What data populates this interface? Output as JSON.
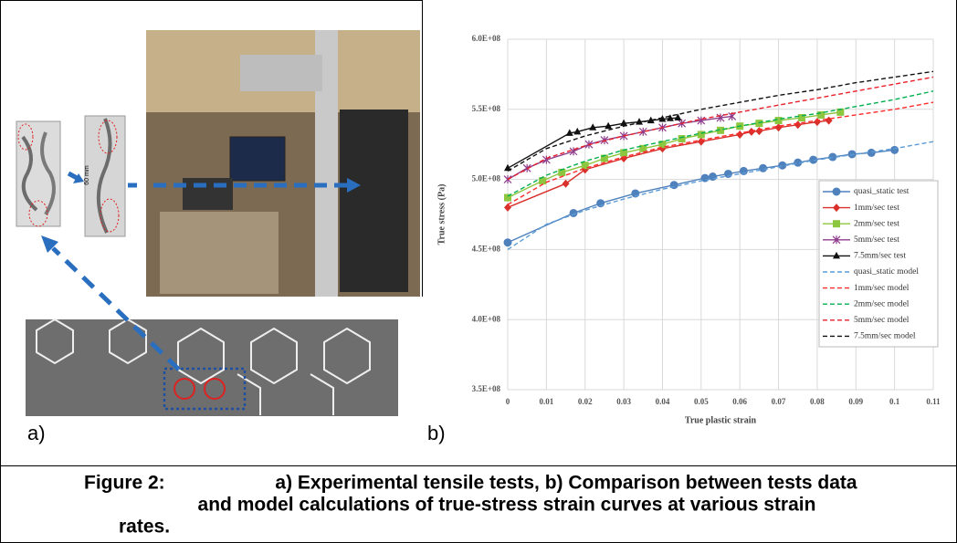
{
  "chart_data": {
    "type": "line",
    "xlabel": "True plastic strain",
    "ylabel": "True stress (Pa)",
    "xlim": [
      0,
      0.11
    ],
    "ylim": [
      350000000.0,
      600000000.0
    ],
    "xticks": [
      0,
      0.01,
      0.02,
      0.03,
      0.04,
      0.05,
      0.06,
      0.07,
      0.08,
      0.09,
      0.1,
      0.11
    ],
    "yticks": [
      {
        "value": 350000000.0,
        "label": "3.5E+08"
      },
      {
        "value": 400000000.0,
        "label": "4.0E+08"
      },
      {
        "value": 450000000.0,
        "label": "4.5E+08"
      },
      {
        "value": 500000000.0,
        "label": "5.0E+08"
      },
      {
        "value": 550000000.0,
        "label": "5.5E+08"
      },
      {
        "value": 600000000.0,
        "label": "6.0E+08"
      }
    ],
    "grid": true,
    "legend": "right",
    "series": [
      {
        "name": "quasi_static test",
        "color": "#4f81bd",
        "style": "solid",
        "marker": "circle",
        "x": [
          0,
          0.017,
          0.024,
          0.033,
          0.043,
          0.051,
          0.053,
          0.057,
          0.061,
          0.066,
          0.071,
          0.075,
          0.079,
          0.084,
          0.089,
          0.094,
          0.1
        ],
        "values": [
          455000000.0,
          476000000.0,
          483000000.0,
          490000000.0,
          496000000.0,
          501000000.0,
          502000000.0,
          504000000.0,
          506000000.0,
          508000000.0,
          510000000.0,
          512000000.0,
          514000000.0,
          516000000.0,
          518000000.0,
          519000000.0,
          521000000.0
        ]
      },
      {
        "name": "1mm/sec test",
        "color": "#d9302b",
        "style": "solid",
        "marker": "diamond",
        "x": [
          0,
          0.015,
          0.02,
          0.03,
          0.04,
          0.05,
          0.06,
          0.063,
          0.065,
          0.07,
          0.075,
          0.08,
          0.083
        ],
        "values": [
          480000000.0,
          497000000.0,
          507000000.0,
          515000000.0,
          522000000.0,
          527000000.0,
          532000000.0,
          534000000.0,
          534500000.0,
          537000000.0,
          539000000.0,
          541000000.0,
          542000000.0
        ]
      },
      {
        "name": "2mm/sec test",
        "color": "#8dc63f",
        "style": "solid",
        "marker": "square",
        "x": [
          0,
          0.009,
          0.014,
          0.02,
          0.025,
          0.03,
          0.035,
          0.04,
          0.045,
          0.05,
          0.055,
          0.06,
          0.065,
          0.07,
          0.076,
          0.081,
          0.086
        ],
        "values": [
          487000000.0,
          499000000.0,
          505000000.0,
          510000000.0,
          515000000.0,
          519000000.0,
          522000000.0,
          525000000.0,
          529000000.0,
          532000000.0,
          535000000.0,
          538000000.0,
          540000000.0,
          542000000.0,
          544000000.0,
          546000000.0,
          548000000.0
        ]
      },
      {
        "name": "5mm/sec test",
        "color": "#8e3c8c",
        "style": "solid",
        "marker": "star",
        "x": [
          0,
          0.005,
          0.01,
          0.017,
          0.021,
          0.025,
          0.03,
          0.035,
          0.04,
          0.045,
          0.05,
          0.055,
          0.058
        ],
        "values": [
          500000000.0,
          508000000.0,
          514000000.0,
          520000000.0,
          525000000.0,
          528000000.0,
          531000000.0,
          534000000.0,
          537000000.0,
          540000000.0,
          542000000.0,
          544000000.0,
          545000000.0
        ]
      },
      {
        "name": "7.5mm/sec test",
        "color": "#111111",
        "style": "solid",
        "marker": "triangle",
        "x": [
          0,
          0.016,
          0.018,
          0.022,
          0.026,
          0.03,
          0.034,
          0.037,
          0.04,
          0.042,
          0.044
        ],
        "values": [
          508000000.0,
          533000000.0,
          534000000.0,
          537000000.0,
          538000000.0,
          540000000.0,
          541000000.0,
          542000000.0,
          543000000.0,
          543500000.0,
          544000000.0
        ]
      },
      {
        "name": "quasi_static model",
        "color": "#5b9bd5",
        "style": "dashed",
        "marker": "none",
        "x": [
          0,
          0.01,
          0.02,
          0.03,
          0.04,
          0.05,
          0.06,
          0.07,
          0.08,
          0.09,
          0.1,
          0.11
        ],
        "values": [
          450000000.0,
          468000000.0,
          478000000.0,
          486000000.0,
          493000000.0,
          499000000.0,
          504000000.0,
          509000000.0,
          514000000.0,
          518000000.0,
          522000000.0,
          527000000.0
        ]
      },
      {
        "name": "1mm/sec model",
        "color": "#ff2a2a",
        "style": "dashed",
        "marker": "none",
        "x": [
          0,
          0.01,
          0.02,
          0.03,
          0.04,
          0.05,
          0.06,
          0.07,
          0.08,
          0.09,
          0.1,
          0.11
        ],
        "values": [
          482000000.0,
          498000000.0,
          508000000.0,
          516000000.0,
          523000000.0,
          528000000.0,
          533000000.0,
          538000000.0,
          542000000.0,
          546000000.0,
          550000000.0,
          555000000.0
        ]
      },
      {
        "name": "2mm/sec model",
        "color": "#00b050",
        "style": "dashed",
        "marker": "none",
        "x": [
          0,
          0.01,
          0.02,
          0.03,
          0.04,
          0.05,
          0.06,
          0.07,
          0.08,
          0.09,
          0.1,
          0.11
        ],
        "values": [
          488000000.0,
          503000000.0,
          513000000.0,
          521000000.0,
          527000000.0,
          533000000.0,
          538000000.0,
          543000000.0,
          547000000.0,
          552000000.0,
          557000000.0,
          563000000.0
        ]
      },
      {
        "name": "5mm/sec model",
        "color": "#e8202a",
        "style": "dashed",
        "marker": "none",
        "x": [
          0,
          0.01,
          0.02,
          0.03,
          0.04,
          0.05,
          0.06,
          0.07,
          0.08,
          0.09,
          0.1,
          0.11
        ],
        "values": [
          500000000.0,
          515000000.0,
          524000000.0,
          531000000.0,
          537000000.0,
          543000000.0,
          548000000.0,
          553000000.0,
          558000000.0,
          563000000.0,
          568000000.0,
          573000000.0
        ]
      },
      {
        "name": "7.5mm/sec model",
        "color": "#111111",
        "style": "dashed",
        "marker": "none",
        "x": [
          0,
          0.01,
          0.02,
          0.03,
          0.04,
          0.05,
          0.06,
          0.07,
          0.08,
          0.09,
          0.1,
          0.11
        ],
        "values": [
          506000000.0,
          522000000.0,
          531000000.0,
          538000000.0,
          544000000.0,
          550000000.0,
          555000000.0,
          560000000.0,
          564000000.0,
          569000000.0,
          573000000.0,
          577000000.0
        ]
      }
    ]
  },
  "photo_annotation": "60 mm",
  "panel_labels": [
    "a)",
    "b)"
  ],
  "caption": {
    "label": "Figure 2:",
    "lines": [
      "a) Experimental tensile tests, b) Comparison between tests data",
      "and model calculations of true-stress strain curves at various strain",
      "rates."
    ]
  }
}
